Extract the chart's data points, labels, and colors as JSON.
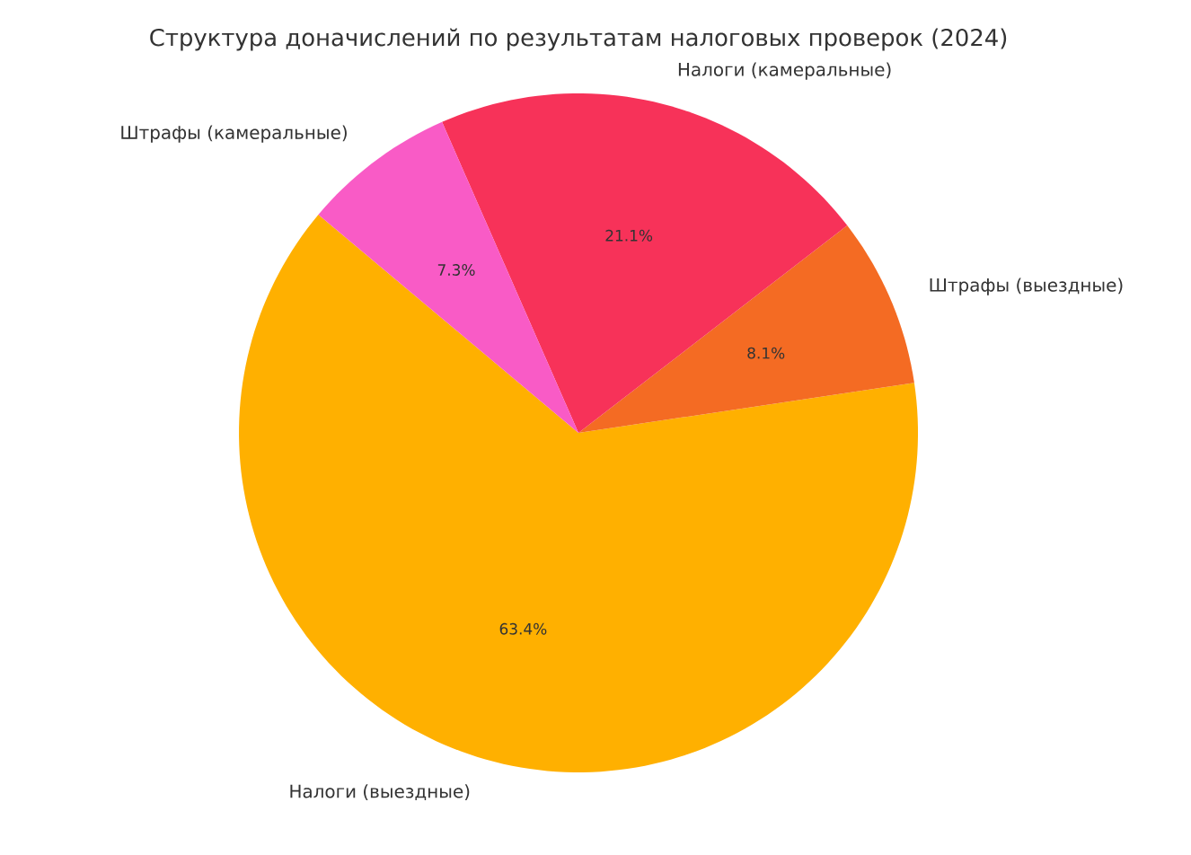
{
  "chart_data": {
    "type": "pie",
    "title": "Структура доначислений по результатам налоговых проверок (2024)",
    "categories": [
      "Налоги (выездные)",
      "Штрафы (выездные)",
      "Налоги (камеральные)",
      "Штрафы (камеральные)"
    ],
    "values": [
      63.4,
      8.1,
      21.1,
      7.3
    ],
    "value_labels": [
      "63.4%",
      "8.1%",
      "21.1%",
      "7.3%"
    ],
    "colors": [
      "#ffb000",
      "#f46b23",
      "#f73259",
      "#f95bc6"
    ]
  }
}
